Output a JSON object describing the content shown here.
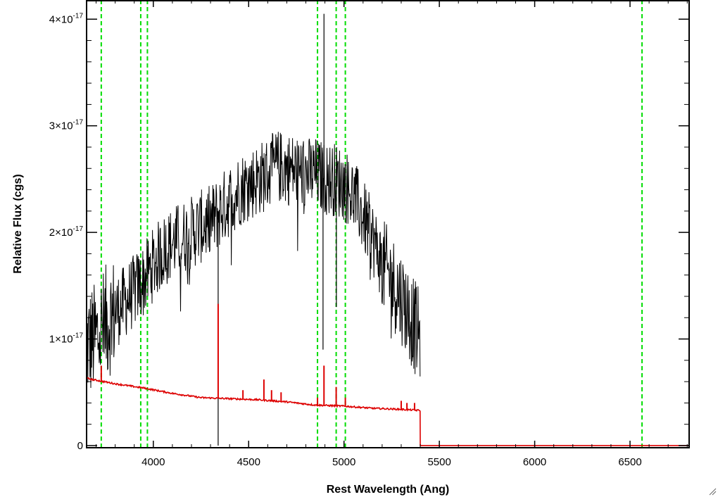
{
  "chart_data": {
    "type": "line",
    "title": "",
    "xlabel": "Rest Wavelength (Ang)",
    "ylabel": "Relative Flux (cgs)",
    "xlim": [
      3650,
      6810
    ],
    "ylim": [
      -2e-19,
      4.18e-17
    ],
    "x_ticks": [
      {
        "value": 4000,
        "label": "4000"
      },
      {
        "value": 4500,
        "label": "4500"
      },
      {
        "value": 5000,
        "label": "5000"
      },
      {
        "value": 5500,
        "label": "5500"
      },
      {
        "value": 6000,
        "label": "6000"
      },
      {
        "value": 6500,
        "label": "6500"
      }
    ],
    "y_ticks": [
      {
        "value": 0,
        "label": "0",
        "exp": ""
      },
      {
        "value": 1e-17,
        "label": "1×10",
        "exp": "-17"
      },
      {
        "value": 2e-17,
        "label": "2×10",
        "exp": "-17"
      },
      {
        "value": 3e-17,
        "label": "3×10",
        "exp": "-17"
      },
      {
        "value": 4e-17,
        "label": "4×10",
        "exp": "-17"
      }
    ],
    "grid": false,
    "reference_lines": {
      "color": "#00dd00",
      "style": "dashed",
      "x": [
        3727,
        3934,
        3969,
        4861,
        4959,
        5007,
        6563
      ]
    },
    "series": [
      {
        "color": "#000000",
        "description_of_shape": "noisy observed spectrum",
        "envelope_x": [
          3655,
          3700,
          3750,
          3800,
          3850,
          3900,
          3950,
          4000,
          4050,
          4100,
          4150,
          4200,
          4250,
          4300,
          4350,
          4400,
          4450,
          4500,
          4550,
          4600,
          4650,
          4700,
          4750,
          4800,
          4850,
          4900,
          4950,
          5000,
          5050,
          5100,
          5150,
          5200,
          5250,
          5300,
          5350,
          5400
        ],
        "envelope_y": [
          9.5e-18,
          1e-17,
          1.15e-17,
          1.25e-17,
          1.35e-17,
          1.45e-17,
          1.55e-17,
          1.7e-17,
          1.82e-17,
          1.9e-17,
          1.95e-17,
          2e-17,
          2.05e-17,
          2.1e-17,
          2.2e-17,
          2.3e-17,
          2.4e-17,
          2.45e-17,
          2.5e-17,
          2.55e-17,
          2.62e-17,
          2.6e-17,
          2.58e-17,
          2.55e-17,
          2.55e-17,
          2.5e-17,
          2.5e-17,
          2.45e-17,
          2.35e-17,
          2.15e-17,
          1.95e-17,
          1.7e-17,
          1.55e-17,
          1.4e-17,
          1.2e-17,
          1e-17
        ],
        "features": [
          {
            "x": 4340,
            "y": 0.0
          },
          {
            "x": 4890,
            "y": 9e-18
          },
          {
            "x": 4895,
            "y": 4.05e-17
          },
          {
            "x": 4960,
            "y": 1.3e-17
          }
        ],
        "x_end": 5400
      },
      {
        "color": "#dd0000",
        "description_of_shape": "model continuum with emission lines",
        "points": [
          [
            3650,
            6.3e-18
          ],
          [
            3800,
            5.8e-18
          ],
          [
            3950,
            5.4e-18
          ],
          [
            4100,
            4.9e-18
          ],
          [
            4250,
            4.5e-18
          ],
          [
            4400,
            4.4e-18
          ],
          [
            4550,
            4.3e-18
          ],
          [
            4700,
            4.1e-18
          ],
          [
            4850,
            3.8e-18
          ],
          [
            5000,
            3.7e-18
          ],
          [
            5150,
            3.5e-18
          ],
          [
            5300,
            3.4e-18
          ],
          [
            5400,
            3.3e-18
          ],
          [
            5400,
            0.0
          ],
          [
            6810,
            0.0
          ]
        ],
        "lines": [
          {
            "x": 3727,
            "y": 7.5e-18
          },
          {
            "x": 4340,
            "y": 1.33e-17
          },
          {
            "x": 4470,
            "y": 5.2e-18
          },
          {
            "x": 4580,
            "y": 6.2e-18
          },
          {
            "x": 4620,
            "y": 5.2e-18
          },
          {
            "x": 4670,
            "y": 5e-18
          },
          {
            "x": 4861,
            "y": 4.5e-18
          },
          {
            "x": 4895,
            "y": 7.5e-18
          },
          {
            "x": 4959,
            "y": 5.5e-18
          },
          {
            "x": 5007,
            "y": 4.5e-18
          },
          {
            "x": 5300,
            "y": 4.2e-18
          },
          {
            "x": 5330,
            "y": 4e-18
          },
          {
            "x": 5370,
            "y": 4e-18
          }
        ]
      }
    ]
  }
}
